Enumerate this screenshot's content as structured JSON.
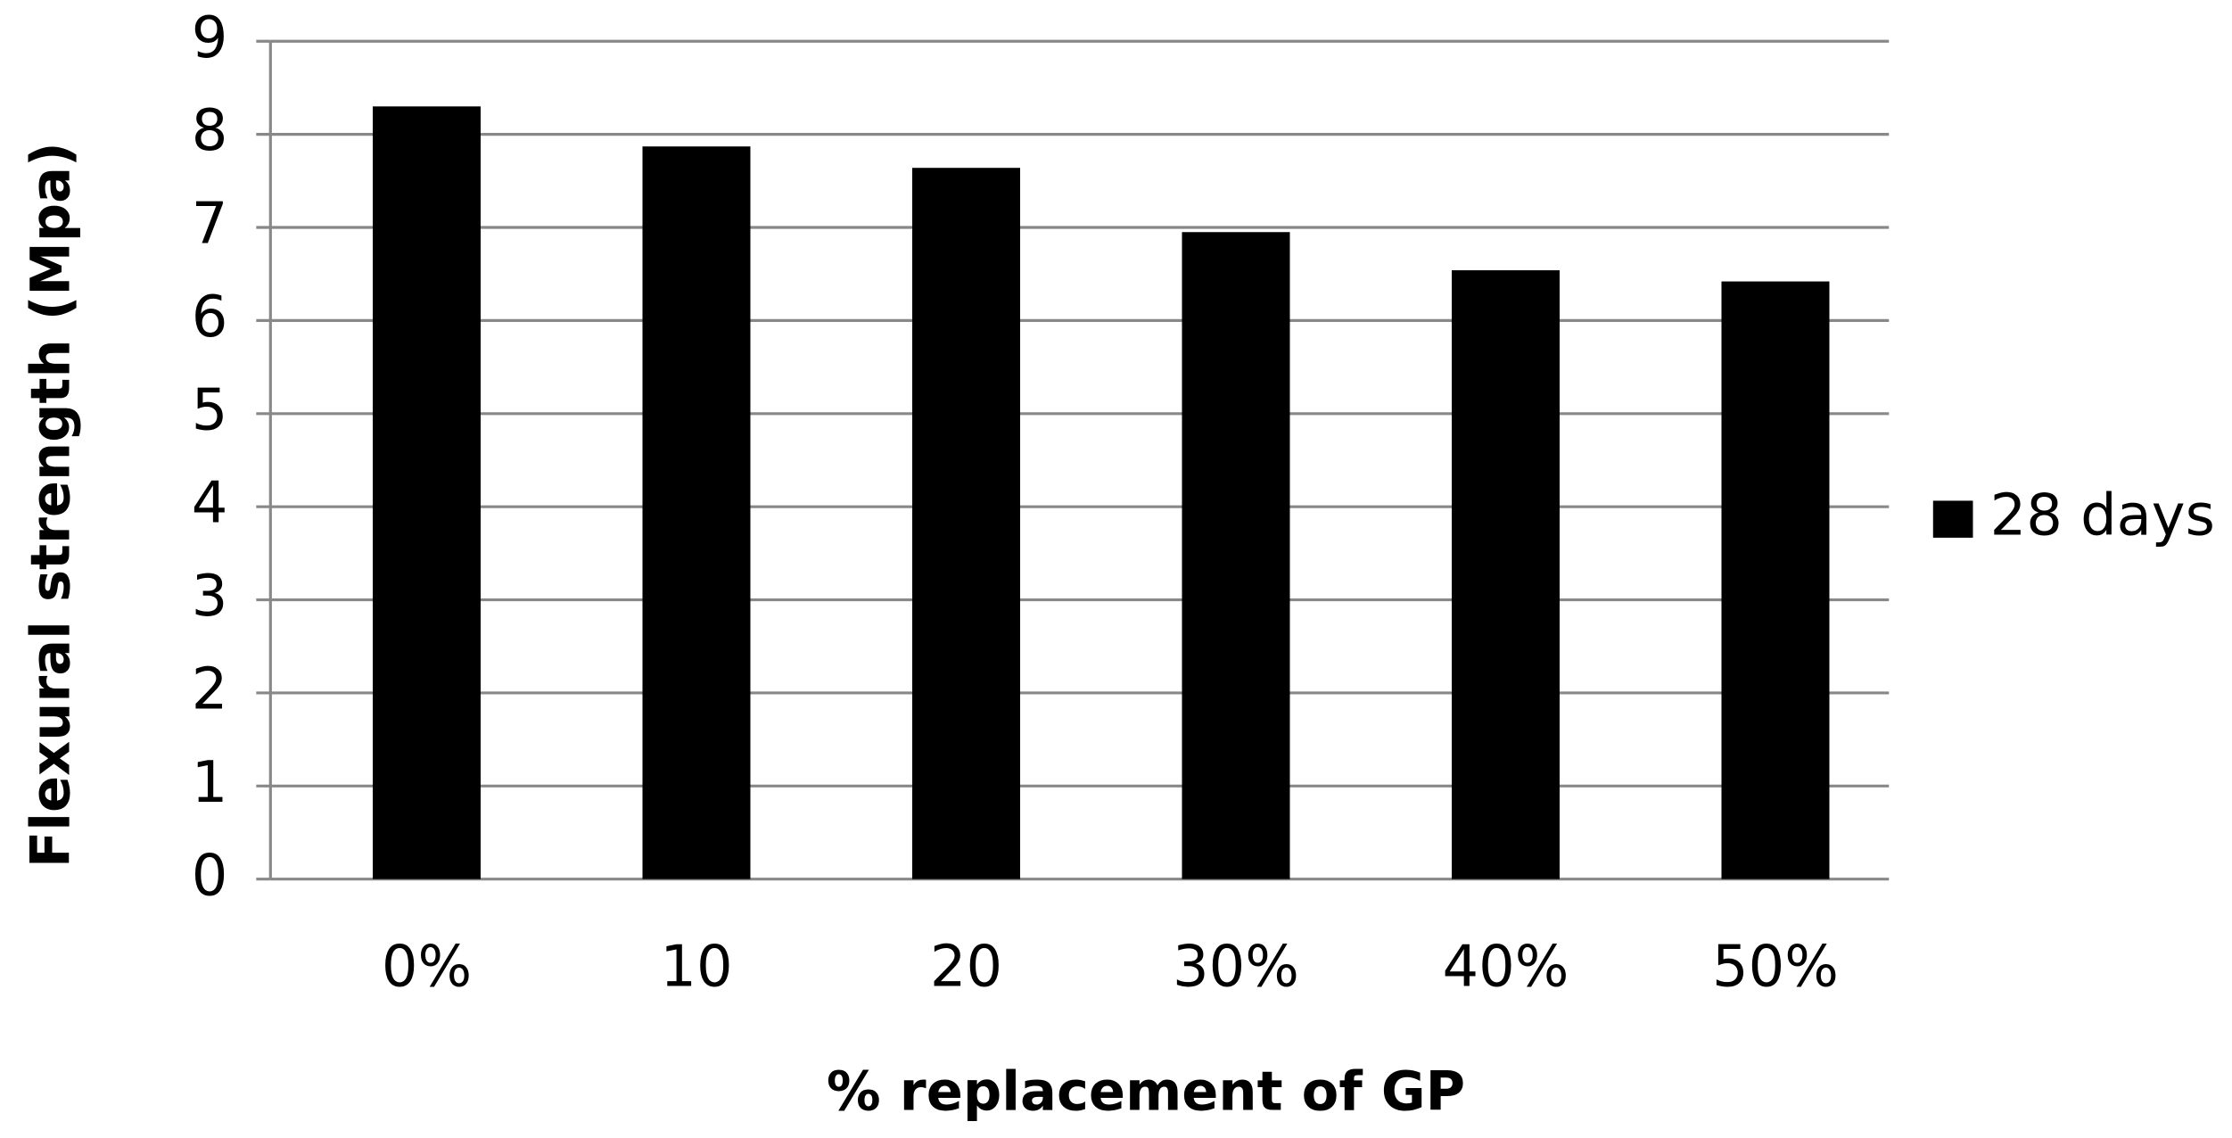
{
  "chart_data": {
    "type": "bar",
    "x_label": "% replacement of GP",
    "y_label": "Flexural strength (Mpa)",
    "categories": [
      "0%",
      "10",
      "20",
      "30%",
      "40%",
      "50%"
    ],
    "series": [
      {
        "name": "28 days",
        "color": "#000000",
        "values": [
          8.3,
          7.87,
          7.64,
          6.95,
          6.54,
          6.42
        ]
      }
    ],
    "ylim": [
      0,
      9
    ],
    "yticks": [
      0,
      1,
      2,
      3,
      4,
      5,
      6,
      7,
      8,
      9
    ],
    "grid": true,
    "legend": "right"
  }
}
